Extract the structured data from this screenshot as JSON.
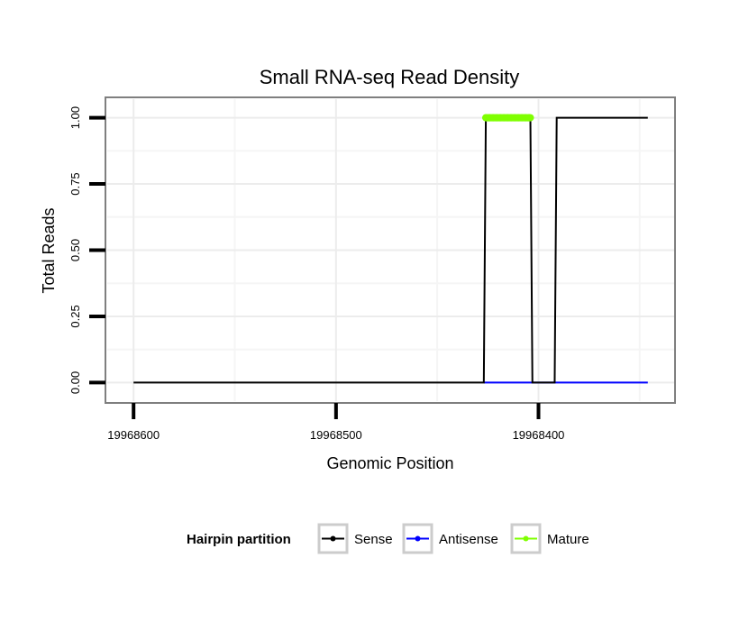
{
  "chart_data": {
    "type": "line",
    "title": "Small RNA-seq Read Density",
    "xlabel": "Genomic Position",
    "ylabel": "Total Reads",
    "x_reversed": true,
    "xlim": [
      19968613,
      19968333
    ],
    "ylim": [
      -0.07,
      1.07
    ],
    "x_ticks": [
      19968600,
      19968500,
      19968400
    ],
    "x_tick_labels": [
      "19968600",
      "19968500",
      "19968400"
    ],
    "y_ticks": [
      0,
      0.25,
      0.5,
      0.75,
      1
    ],
    "y_tick_labels": [
      "0.00",
      "0.25",
      "0.50",
      "0.75",
      "1.00"
    ],
    "grid": true,
    "legend": {
      "title": "Hairpin partition",
      "position": "bottom",
      "entries": [
        {
          "name": "Sense",
          "color": "#000000"
        },
        {
          "name": "Antisense",
          "color": "#0000ff"
        },
        {
          "name": "Mature",
          "color": "#7fff00"
        }
      ]
    },
    "series": [
      {
        "name": "Sense",
        "color": "#000000",
        "x": [
          19968600,
          19968427,
          19968426,
          19968404,
          19968403,
          19968392,
          19968391,
          19968346
        ],
        "y": [
          0,
          0,
          1,
          1,
          0,
          0,
          1,
          1
        ]
      },
      {
        "name": "Antisense",
        "color": "#0000ff",
        "x": [
          19968427,
          19968346
        ],
        "y": [
          0,
          0
        ]
      },
      {
        "name": "Mature",
        "color": "#7fff00",
        "x": [
          19968426,
          19968404
        ],
        "y": [
          1,
          1
        ]
      }
    ]
  }
}
